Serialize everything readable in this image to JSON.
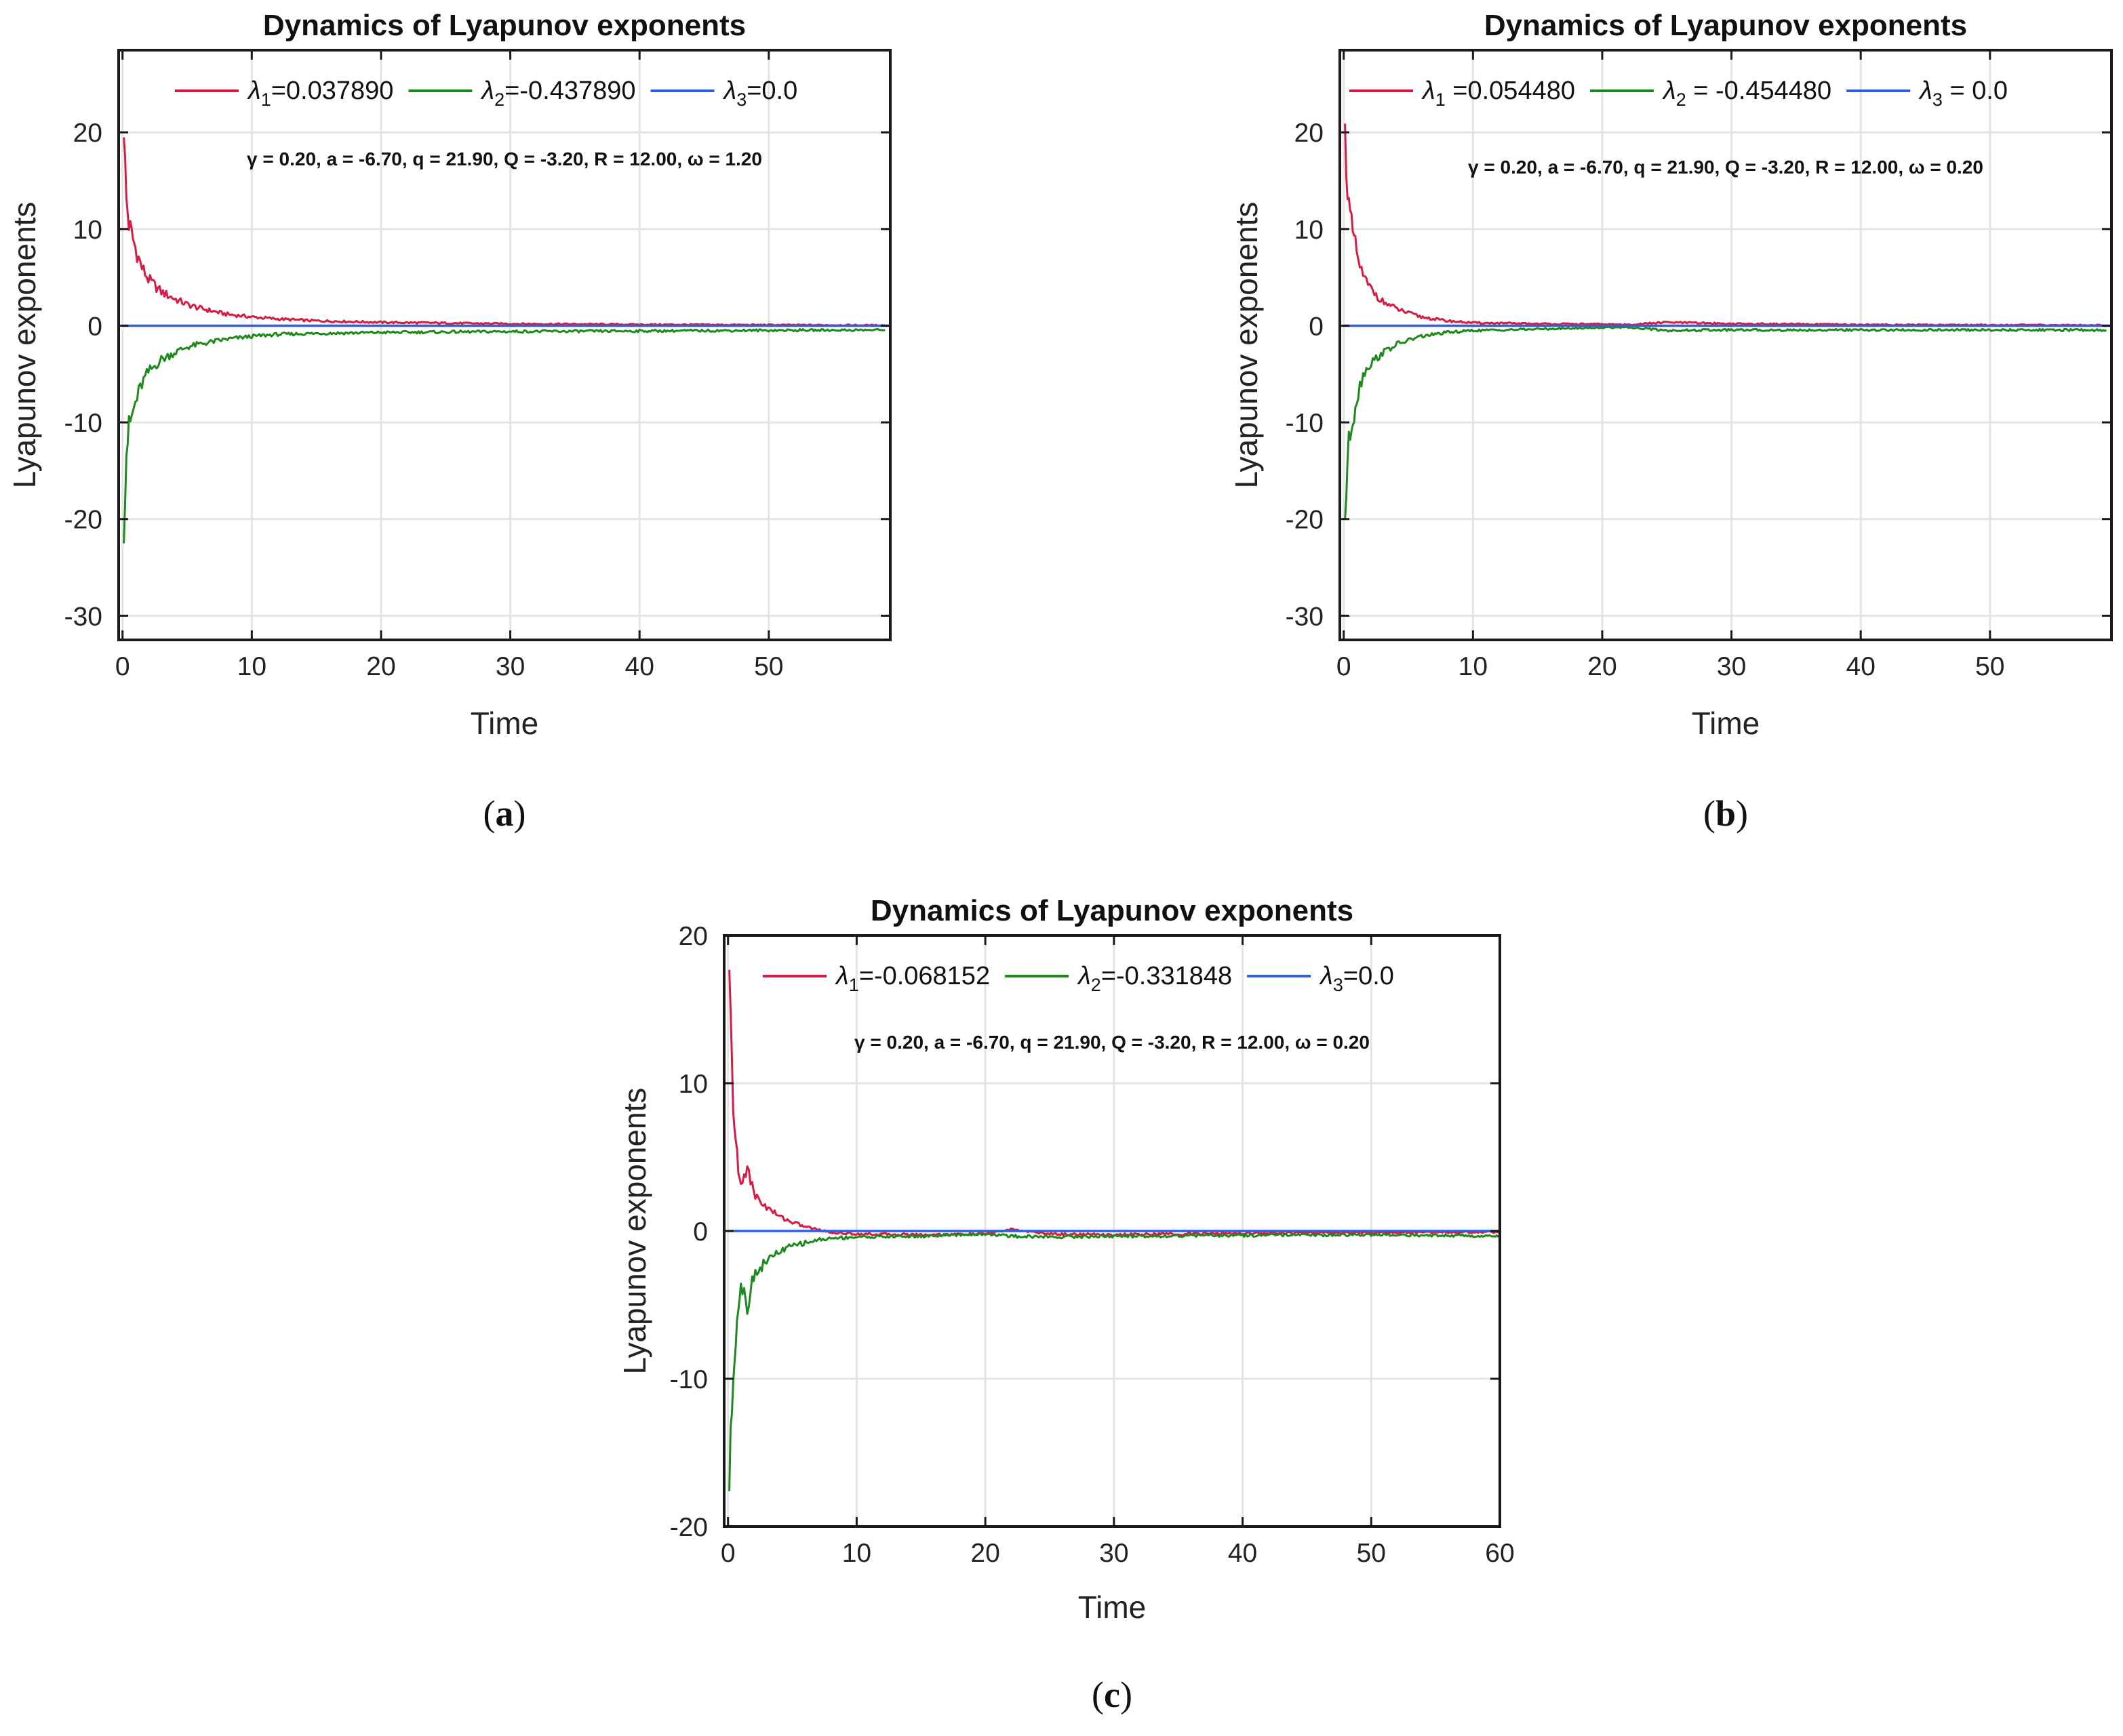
{
  "colors": {
    "lambda1": "#d81b45",
    "lambda2": "#1e8a1e",
    "lambda3": "#2f5fe0",
    "grid": "#e4e4e4",
    "frame": "#1a1a1a"
  },
  "chart_data": [
    {
      "panel": "a",
      "caption": "a",
      "type": "line",
      "title": "Dynamics of Lyapunov exponents",
      "xlabel": "Time",
      "ylabel": "Lyapunov exponents",
      "xlim": [
        -0.3,
        59.4
      ],
      "ylim": [
        -32.5,
        28.5
      ],
      "xticks": [
        0,
        10,
        20,
        30,
        40,
        50
      ],
      "yticks": [
        -30,
        -20,
        -10,
        0,
        10,
        20
      ],
      "grid": true,
      "legend_position": "top",
      "legend": [
        {
          "symbol": "λ",
          "subscript": "1",
          "text": "=0.037890"
        },
        {
          "symbol": "λ",
          "subscript": "2",
          "text": "=-0.437890"
        },
        {
          "symbol": "λ",
          "subscript": "3",
          "text": "=0.0"
        }
      ],
      "annotation": "γ = 0.20, a = -6.70, q = 21.90, Q = -3.20, R = 12.00, ω = 1.20",
      "series": [
        {
          "key": "lambda1",
          "name": "λ1",
          "x": [
            0.1,
            0.3,
            0.5,
            0.8,
            1,
            1.5,
            2,
            3,
            4,
            5,
            6,
            8,
            10,
            12,
            15,
            20,
            30,
            40,
            50,
            59
          ],
          "values": [
            20.5,
            13,
            10.5,
            9,
            8,
            6,
            4.8,
            3.5,
            2.8,
            2.2,
            1.8,
            1.2,
            0.9,
            0.7,
            0.5,
            0.35,
            0.2,
            0.12,
            0.08,
            0.04
          ]
        },
        {
          "key": "lambda2",
          "name": "λ2",
          "x": [
            0.1,
            0.3,
            0.5,
            0.8,
            1,
            1.5,
            2,
            3,
            4,
            5,
            6,
            8,
            10,
            12,
            15,
            20,
            30,
            40,
            50,
            59
          ],
          "values": [
            -21,
            -13,
            -10.5,
            -9,
            -8,
            -6,
            -4.8,
            -3.5,
            -2.8,
            -2.2,
            -1.9,
            -1.4,
            -1.1,
            -0.9,
            -0.8,
            -0.7,
            -0.6,
            -0.55,
            -0.48,
            -0.44
          ]
        },
        {
          "key": "lambda3",
          "name": "λ3",
          "x": [
            0,
            59.4
          ],
          "values": [
            0,
            0
          ]
        }
      ]
    },
    {
      "panel": "b",
      "caption": "b",
      "type": "line",
      "title": "Dynamics of Lyapunov exponents",
      "xlabel": "Time",
      "ylabel": "Lyapunov exponents",
      "xlim": [
        -0.3,
        59.4
      ],
      "ylim": [
        -32.5,
        28.5
      ],
      "xticks": [
        0,
        10,
        20,
        30,
        40,
        50
      ],
      "yticks": [
        -30,
        -20,
        -10,
        0,
        10,
        20
      ],
      "grid": true,
      "legend_position": "top",
      "legend": [
        {
          "symbol": "λ",
          "subscript": "1",
          "text": " =0.054480"
        },
        {
          "symbol": "λ",
          "subscript": "2",
          "text": " =  -0.454480"
        },
        {
          "symbol": "λ",
          "subscript": "3",
          "text": " = 0.0"
        }
      ],
      "annotation": "γ = 0.20, a = -6.70, q = 21.90, Q = -3.20, R = 12.00, ω = 0.20",
      "series": [
        {
          "key": "lambda1",
          "name": "λ1",
          "x": [
            0.1,
            0.3,
            0.5,
            0.8,
            1,
            1.5,
            2,
            3,
            4,
            5,
            6,
            8,
            10,
            15,
            20,
            22,
            25,
            30,
            40,
            50,
            59
          ],
          "values": [
            20,
            14,
            11,
            9,
            7.5,
            5,
            4,
            2.5,
            1.8,
            1.3,
            0.9,
            0.5,
            0.3,
            0.2,
            0.15,
            0.1,
            0.35,
            0.2,
            0.1,
            0.08,
            0.05
          ]
        },
        {
          "key": "lambda2",
          "name": "λ2",
          "x": [
            0.1,
            0.3,
            0.5,
            0.8,
            1,
            1.5,
            2,
            3,
            4,
            5,
            6,
            8,
            10,
            15,
            20,
            22,
            25,
            30,
            40,
            50,
            59
          ],
          "values": [
            -20,
            -14,
            -11,
            -9,
            -7.5,
            -5,
            -4,
            -2.8,
            -2,
            -1.5,
            -1.1,
            -0.7,
            -0.5,
            -0.35,
            -0.2,
            -0.15,
            -0.5,
            -0.45,
            -0.45,
            -0.45,
            -0.45
          ]
        },
        {
          "key": "lambda3",
          "name": "λ3",
          "x": [
            0,
            59.4
          ],
          "values": [
            0,
            0
          ]
        }
      ]
    },
    {
      "panel": "c",
      "caption": "c",
      "type": "line",
      "title": "Dynamics of Lyapunov exponents",
      "xlabel": "Time",
      "ylabel": "Lyapunov exponents",
      "xlim": [
        -0.3,
        60
      ],
      "ylim": [
        -20,
        20
      ],
      "xticks": [
        0,
        10,
        20,
        30,
        40,
        50,
        60
      ],
      "yticks": [
        -20,
        -10,
        0,
        10,
        20
      ],
      "grid": true,
      "legend_position": "top",
      "legend": [
        {
          "symbol": "λ",
          "subscript": "1",
          "text": "=-0.068152"
        },
        {
          "symbol": "λ",
          "subscript": "2",
          "text": "=-0.331848"
        },
        {
          "symbol": "λ",
          "subscript": "3",
          "text": "=0.0"
        }
      ],
      "annotation": "γ = 0.20, a = -6.70, q = 21.90, Q = -3.20, R = 12.00, ω = 0.20",
      "series": [
        {
          "key": "lambda1",
          "name": "λ1",
          "x": [
            0.1,
            0.3,
            0.5,
            0.8,
            1,
            1.5,
            2,
            3,
            4,
            5,
            6,
            7,
            8,
            10,
            15,
            20,
            22,
            25,
            30,
            40,
            50,
            60
          ],
          "values": [
            17,
            11,
            7,
            4,
            3,
            4.5,
            2.5,
            1.6,
            1,
            0.6,
            0.3,
            0.1,
            -0.1,
            -0.2,
            -0.25,
            -0.2,
            0.1,
            -0.2,
            -0.25,
            -0.15,
            -0.1,
            -0.07
          ]
        },
        {
          "key": "lambda2",
          "name": "λ2",
          "x": [
            0.1,
            0.3,
            0.5,
            0.8,
            1,
            1.5,
            2,
            3,
            4,
            5,
            6,
            7,
            8,
            10,
            15,
            20,
            22,
            25,
            30,
            40,
            50,
            60
          ],
          "values": [
            -17,
            -12,
            -8,
            -5,
            -3.5,
            -5,
            -3,
            -2,
            -1.4,
            -1,
            -0.8,
            -0.6,
            -0.5,
            -0.4,
            -0.35,
            -0.2,
            -0.35,
            -0.4,
            -0.35,
            -0.3,
            -0.25,
            -0.33
          ]
        },
        {
          "key": "lambda3",
          "name": "λ3",
          "x": [
            0,
            60
          ],
          "values": [
            0,
            0
          ]
        }
      ]
    }
  ]
}
